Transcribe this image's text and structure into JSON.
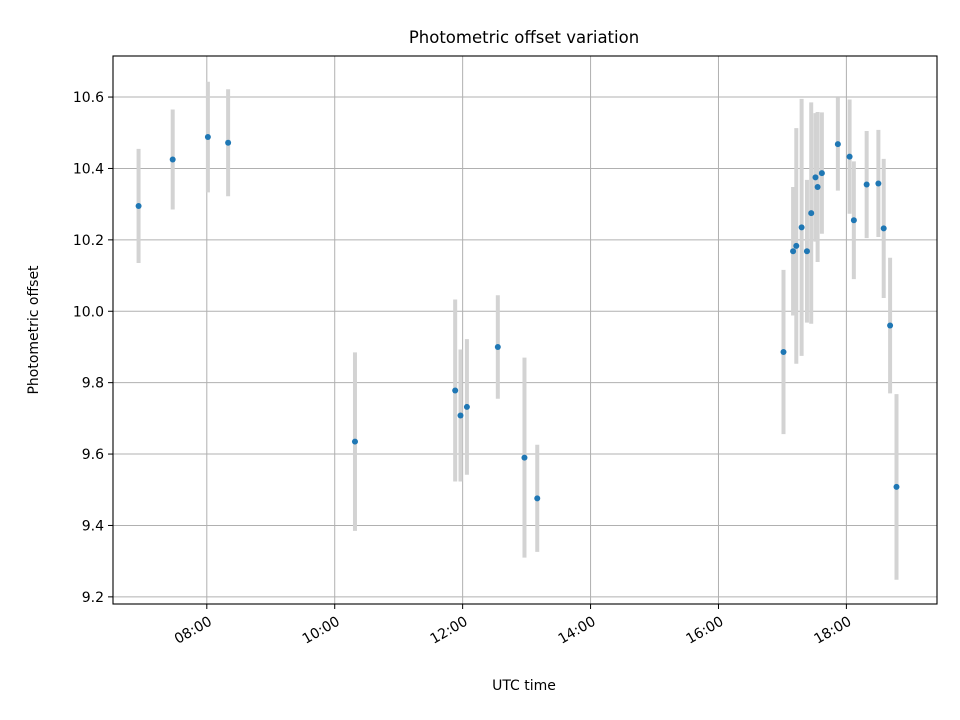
{
  "chart_data": {
    "type": "scatter",
    "title": "Photometric offset variation",
    "xlabel": "UTC time",
    "ylabel": "Photometric offset",
    "xlim": [
      "06:32",
      "19:25"
    ],
    "ylim": [
      9.18,
      10.715
    ],
    "x_ticks": [
      "08:00",
      "10:00",
      "12:00",
      "14:00",
      "16:00",
      "18:00"
    ],
    "y_ticks": [
      "9.2",
      "9.4",
      "9.6",
      "9.8",
      "10.0",
      "10.2",
      "10.4",
      "10.6"
    ],
    "grid": true,
    "colors": {
      "points": "#1f77b4",
      "errorbars": "#d3d3d3",
      "grid": "#b0b0b0"
    },
    "series": [
      {
        "points": [
          {
            "x": "06:56",
            "y": 10.295,
            "yerr": 0.16
          },
          {
            "x": "07:28",
            "y": 10.425,
            "yerr": 0.14
          },
          {
            "x": "08:01",
            "y": 10.488,
            "yerr": 0.155
          },
          {
            "x": "08:20",
            "y": 10.472,
            "yerr": 0.15
          },
          {
            "x": "10:19",
            "y": 9.635,
            "yerr": 0.25
          },
          {
            "x": "11:53",
            "y": 9.778,
            "yerr": 0.255
          },
          {
            "x": "11:58",
            "y": 9.708,
            "yerr": 0.185
          },
          {
            "x": "12:04",
            "y": 9.732,
            "yerr": 0.19
          },
          {
            "x": "12:33",
            "y": 9.9,
            "yerr": 0.145
          },
          {
            "x": "12:58",
            "y": 9.59,
            "yerr": 0.28
          },
          {
            "x": "13:10",
            "y": 9.476,
            "yerr": 0.15
          },
          {
            "x": "17:01",
            "y": 9.886,
            "yerr": 0.23
          },
          {
            "x": "17:10",
            "y": 10.168,
            "yerr": 0.18
          },
          {
            "x": "17:13",
            "y": 10.183,
            "yerr": 0.33
          },
          {
            "x": "17:18",
            "y": 10.235,
            "yerr": 0.36
          },
          {
            "x": "17:23",
            "y": 10.168,
            "yerr": 0.2
          },
          {
            "x": "17:27",
            "y": 10.275,
            "yerr": 0.31
          },
          {
            "x": "17:31",
            "y": 10.375,
            "yerr": 0.18
          },
          {
            "x": "17:33",
            "y": 10.348,
            "yerr": 0.21
          },
          {
            "x": "17:37",
            "y": 10.387,
            "yerr": 0.17
          },
          {
            "x": "17:52",
            "y": 10.468,
            "yerr": 0.13
          },
          {
            "x": "18:03",
            "y": 10.433,
            "yerr": 0.16
          },
          {
            "x": "18:07",
            "y": 10.255,
            "yerr": 0.165
          },
          {
            "x": "18:19",
            "y": 10.355,
            "yerr": 0.15
          },
          {
            "x": "18:30",
            "y": 10.358,
            "yerr": 0.15
          },
          {
            "x": "18:35",
            "y": 10.232,
            "yerr": 0.195
          },
          {
            "x": "18:41",
            "y": 9.96,
            "yerr": 0.19
          },
          {
            "x": "18:47",
            "y": 9.508,
            "yerr": 0.26
          }
        ]
      }
    ]
  }
}
